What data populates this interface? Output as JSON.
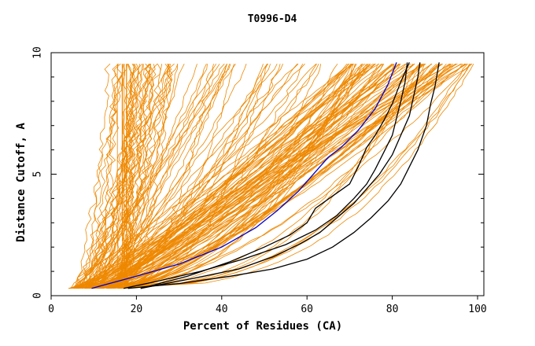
{
  "chart_data": {
    "type": "line",
    "title": "T0996-D4",
    "xlabel": "Percent of Residues (CA)",
    "ylabel": "Distance Cutoff, A",
    "xlim": [
      0,
      102
    ],
    "ylim": [
      0,
      10
    ],
    "xticks": [
      0,
      20,
      40,
      60,
      80,
      100
    ],
    "yticks": [
      0,
      5,
      10
    ],
    "grid": false,
    "legend": "none",
    "colors": {
      "background_models": "#ee8800",
      "highlight_blue": "#0000cc",
      "highlight_black": "#000000"
    },
    "series": [
      {
        "color": "#0000cc",
        "points": [
          [
            9.5,
            0.3
          ],
          [
            20,
            0.8
          ],
          [
            30,
            1.3
          ],
          [
            40,
            2.0
          ],
          [
            48,
            2.8
          ],
          [
            53,
            3.5
          ],
          [
            58,
            4.3
          ],
          [
            62,
            5.1
          ],
          [
            65,
            5.7
          ],
          [
            68,
            6.1
          ],
          [
            72,
            6.8
          ],
          [
            76,
            7.7
          ],
          [
            79,
            8.7
          ],
          [
            81,
            9.6
          ]
        ]
      },
      {
        "color": "#000000",
        "points": [
          [
            17,
            0.3
          ],
          [
            25,
            0.6
          ],
          [
            35,
            1.0
          ],
          [
            45,
            1.5
          ],
          [
            55,
            2.1
          ],
          [
            62,
            2.7
          ],
          [
            67,
            3.3
          ],
          [
            71,
            4.0
          ],
          [
            74,
            4.6
          ],
          [
            76,
            5.2
          ],
          [
            78,
            5.9
          ],
          [
            80,
            6.6
          ],
          [
            81,
            7.3
          ],
          [
            82,
            8.0
          ],
          [
            83,
            8.8
          ],
          [
            83.5,
            9.6
          ]
        ]
      },
      {
        "color": "#000000",
        "points": [
          [
            21,
            0.3
          ],
          [
            32,
            0.8
          ],
          [
            42,
            1.4
          ],
          [
            50,
            2.0
          ],
          [
            56,
            2.5
          ],
          [
            60,
            3.0
          ],
          [
            62,
            3.6
          ],
          [
            66,
            4.1
          ],
          [
            70,
            4.6
          ],
          [
            72,
            5.3
          ],
          [
            74,
            6.1
          ],
          [
            76,
            6.6
          ],
          [
            78,
            7.2
          ],
          [
            80,
            7.9
          ],
          [
            82,
            8.8
          ],
          [
            84,
            9.6
          ]
        ]
      },
      {
        "color": "#000000",
        "points": [
          [
            21,
            0.3
          ],
          [
            33,
            0.7
          ],
          [
            44,
            1.1
          ],
          [
            52,
            1.6
          ],
          [
            58,
            2.1
          ],
          [
            63,
            2.6
          ],
          [
            67,
            3.2
          ],
          [
            71,
            3.8
          ],
          [
            74,
            4.4
          ],
          [
            77,
            5.0
          ],
          [
            80,
            5.8
          ],
          [
            82,
            6.6
          ],
          [
            84,
            7.4
          ],
          [
            85,
            8.2
          ],
          [
            86,
            9.0
          ],
          [
            86.5,
            9.6
          ]
        ]
      },
      {
        "color": "#000000",
        "points": [
          [
            18,
            0.3
          ],
          [
            30,
            0.5
          ],
          [
            42,
            0.8
          ],
          [
            52,
            1.1
          ],
          [
            60,
            1.5
          ],
          [
            66,
            2.0
          ],
          [
            71,
            2.6
          ],
          [
            75,
            3.2
          ],
          [
            79,
            3.9
          ],
          [
            82,
            4.6
          ],
          [
            84,
            5.3
          ],
          [
            86,
            6.0
          ],
          [
            88,
            7.0
          ],
          [
            89,
            7.9
          ],
          [
            90,
            8.6
          ],
          [
            91,
            9.6
          ]
        ]
      }
    ]
  }
}
